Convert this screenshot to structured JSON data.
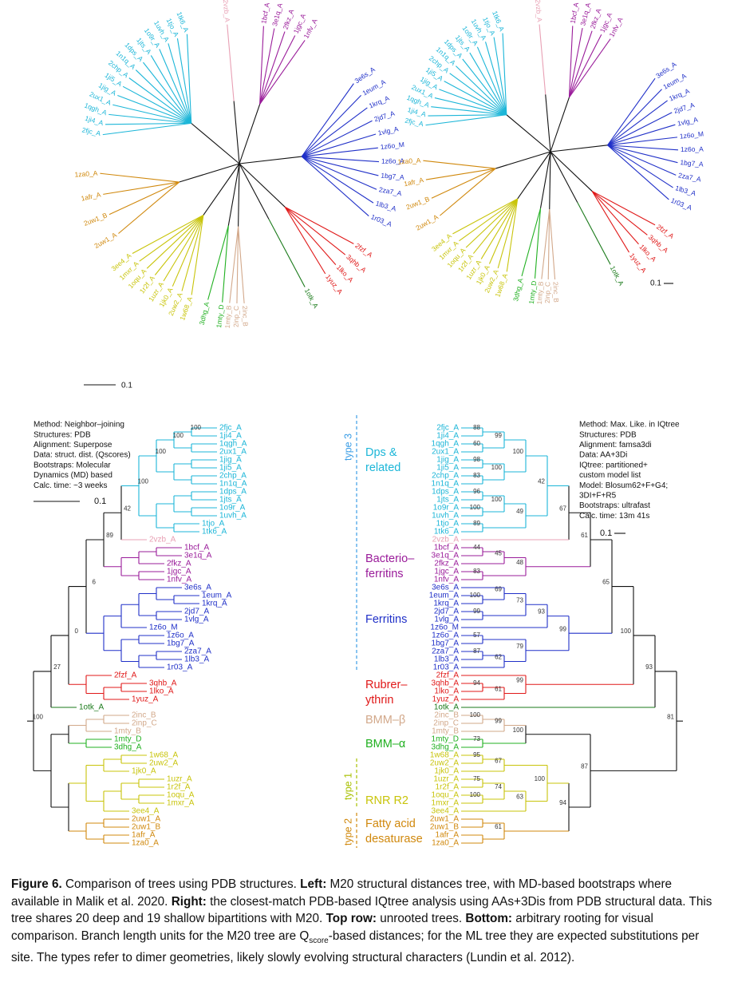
{
  "left_tree": {
    "method": [
      "Method: Neighbor–joining",
      "Structures: PDB",
      "Alignment: Superpose",
      "Data: struct. dist. (Qscores)",
      "Bootstraps: Molecular",
      "  Dynamics (MD) based",
      "Calc. time: ~3 weeks"
    ],
    "scale": "0.1",
    "bootstraps": [
      100,
      27,
      0,
      6,
      89,
      42,
      100,
      100,
      100,
      100
    ]
  },
  "right_tree": {
    "method": [
      "Method: Max. Like. in IQtree",
      "Structures: PDB",
      "Alignment: famsa3di",
      "Data: AA+3Di",
      "IQtree: partitioned+",
      "  custom model list",
      "Model: Blosum62+F+G4;",
      "    3DI+F+R5",
      "Bootstraps: ultrafast",
      "Calc. time: 13m 41s"
    ],
    "scale": "0.1",
    "bootstraps": [
      81,
      93,
      100,
      65,
      61,
      67,
      42,
      100,
      99,
      88,
      60,
      100,
      98,
      83,
      49,
      100,
      96,
      100,
      89,
      48,
      45,
      44,
      83,
      99,
      93,
      73,
      69,
      100,
      99,
      79,
      57,
      62,
      87,
      99,
      61,
      94,
      87,
      100,
      99,
      100,
      73,
      94,
      100,
      67,
      95,
      63,
      74,
      75,
      100,
      61
    ]
  },
  "clades": [
    {
      "label": [
        "Dps &",
        "related"
      ],
      "color": "#1cb6d8",
      "leaves": [
        "2fjc_A",
        "1ji4_A",
        "1qgh_A",
        "2ux1_A",
        "1jig_A",
        "1ji5_A",
        "2chp_A",
        "1n1q_A",
        "1dps_A",
        "1jts_A",
        "1o9r_A",
        "1uvh_A",
        "1tjo_A",
        "1tk6_A"
      ]
    },
    {
      "color": "#e8a0b4",
      "leaves": [
        "2vzb_A"
      ]
    },
    {
      "label": [
        "Bacterio–",
        "ferritins"
      ],
      "color": "#9a1c9a",
      "leaves": [
        "1bcf_A",
        "3e1q_A",
        "2fkz_A",
        "1jgc_A",
        "1nfv_A"
      ]
    },
    {
      "label": [
        "Ferritins"
      ],
      "color": "#2030c8",
      "leaves": [
        "3e6s_A",
        "1eum_A",
        "1krq_A",
        "2jd7_A",
        "1vlg_A",
        "1z6o_M",
        "1z6o_A",
        "1bg7_A",
        "2za7_A",
        "1lb3_A",
        "1r03_A"
      ]
    },
    {
      "label": [
        "Rubrer–",
        "ythrin"
      ],
      "color": "#e01818",
      "leaves": [
        "2fzf_A",
        "3qhb_A",
        "1lko_A",
        "1yuz_A"
      ]
    },
    {
      "color": "#1a7a1a",
      "leaves": [
        "1otk_A"
      ]
    },
    {
      "label": [
        "BMM–β"
      ],
      "color": "#d2a88a",
      "leaves": [
        "2inc_B",
        "2inp_C",
        "1mty_B"
      ]
    },
    {
      "label": [
        "BMM–α"
      ],
      "color": "#20b020",
      "leaves": [
        "1mty_D",
        "3dhg_A"
      ]
    },
    {
      "label": [
        "RNR R2"
      ],
      "color": "#c8c40a",
      "leaves": [
        "1w68_A",
        "2uw2_A",
        "1jk0_A",
        "1uzr_A",
        "1r2f_A",
        "1oqu_A",
        "1mxr_A",
        "3ee4_A"
      ]
    },
    {
      "label": [
        "Fatty acid",
        "desaturase"
      ],
      "color": "#d0880c",
      "leaves": [
        "2uw1_A",
        "2uw1_B",
        "1afr_A",
        "1za0_A"
      ]
    }
  ],
  "types": [
    {
      "label": "type 3",
      "color": "#3c9ee6"
    },
    {
      "label": "type 1",
      "color": "#a8c000"
    },
    {
      "label": "type 2",
      "color": "#d0880c"
    }
  ],
  "caption": [
    {
      "text": "Figure 6.",
      "bold": true
    },
    {
      "text": " Comparison of trees using PDB structures. "
    },
    {
      "text": "Left:",
      "bold": true
    },
    {
      "text": " M20 structural distances tree, with MD-based bootstraps where available in Malik et al. 2020. "
    },
    {
      "text": "Right:",
      "bold": true
    },
    {
      "text": " the closest-match PDB-based IQtree analysis using AAs+3Dis from PDB structural data. This tree shares 20 deep and 19 shallow bipartitions with M20. "
    },
    {
      "text": "Top row:",
      "bold": true
    },
    {
      "text": " unrooted trees. "
    },
    {
      "text": "Bottom:",
      "bold": true
    },
    {
      "text": " arbitrary rooting for visual comparison. Branch length units for the M20 tree are Q"
    },
    {
      "text": "score",
      "sub": true
    },
    {
      "text": "-based distances; for the ML tree they are expected substitutions per site. The types refer to dimer geometries, likely slowly evolving structural characters (Lundin et al. 2012)."
    }
  ]
}
